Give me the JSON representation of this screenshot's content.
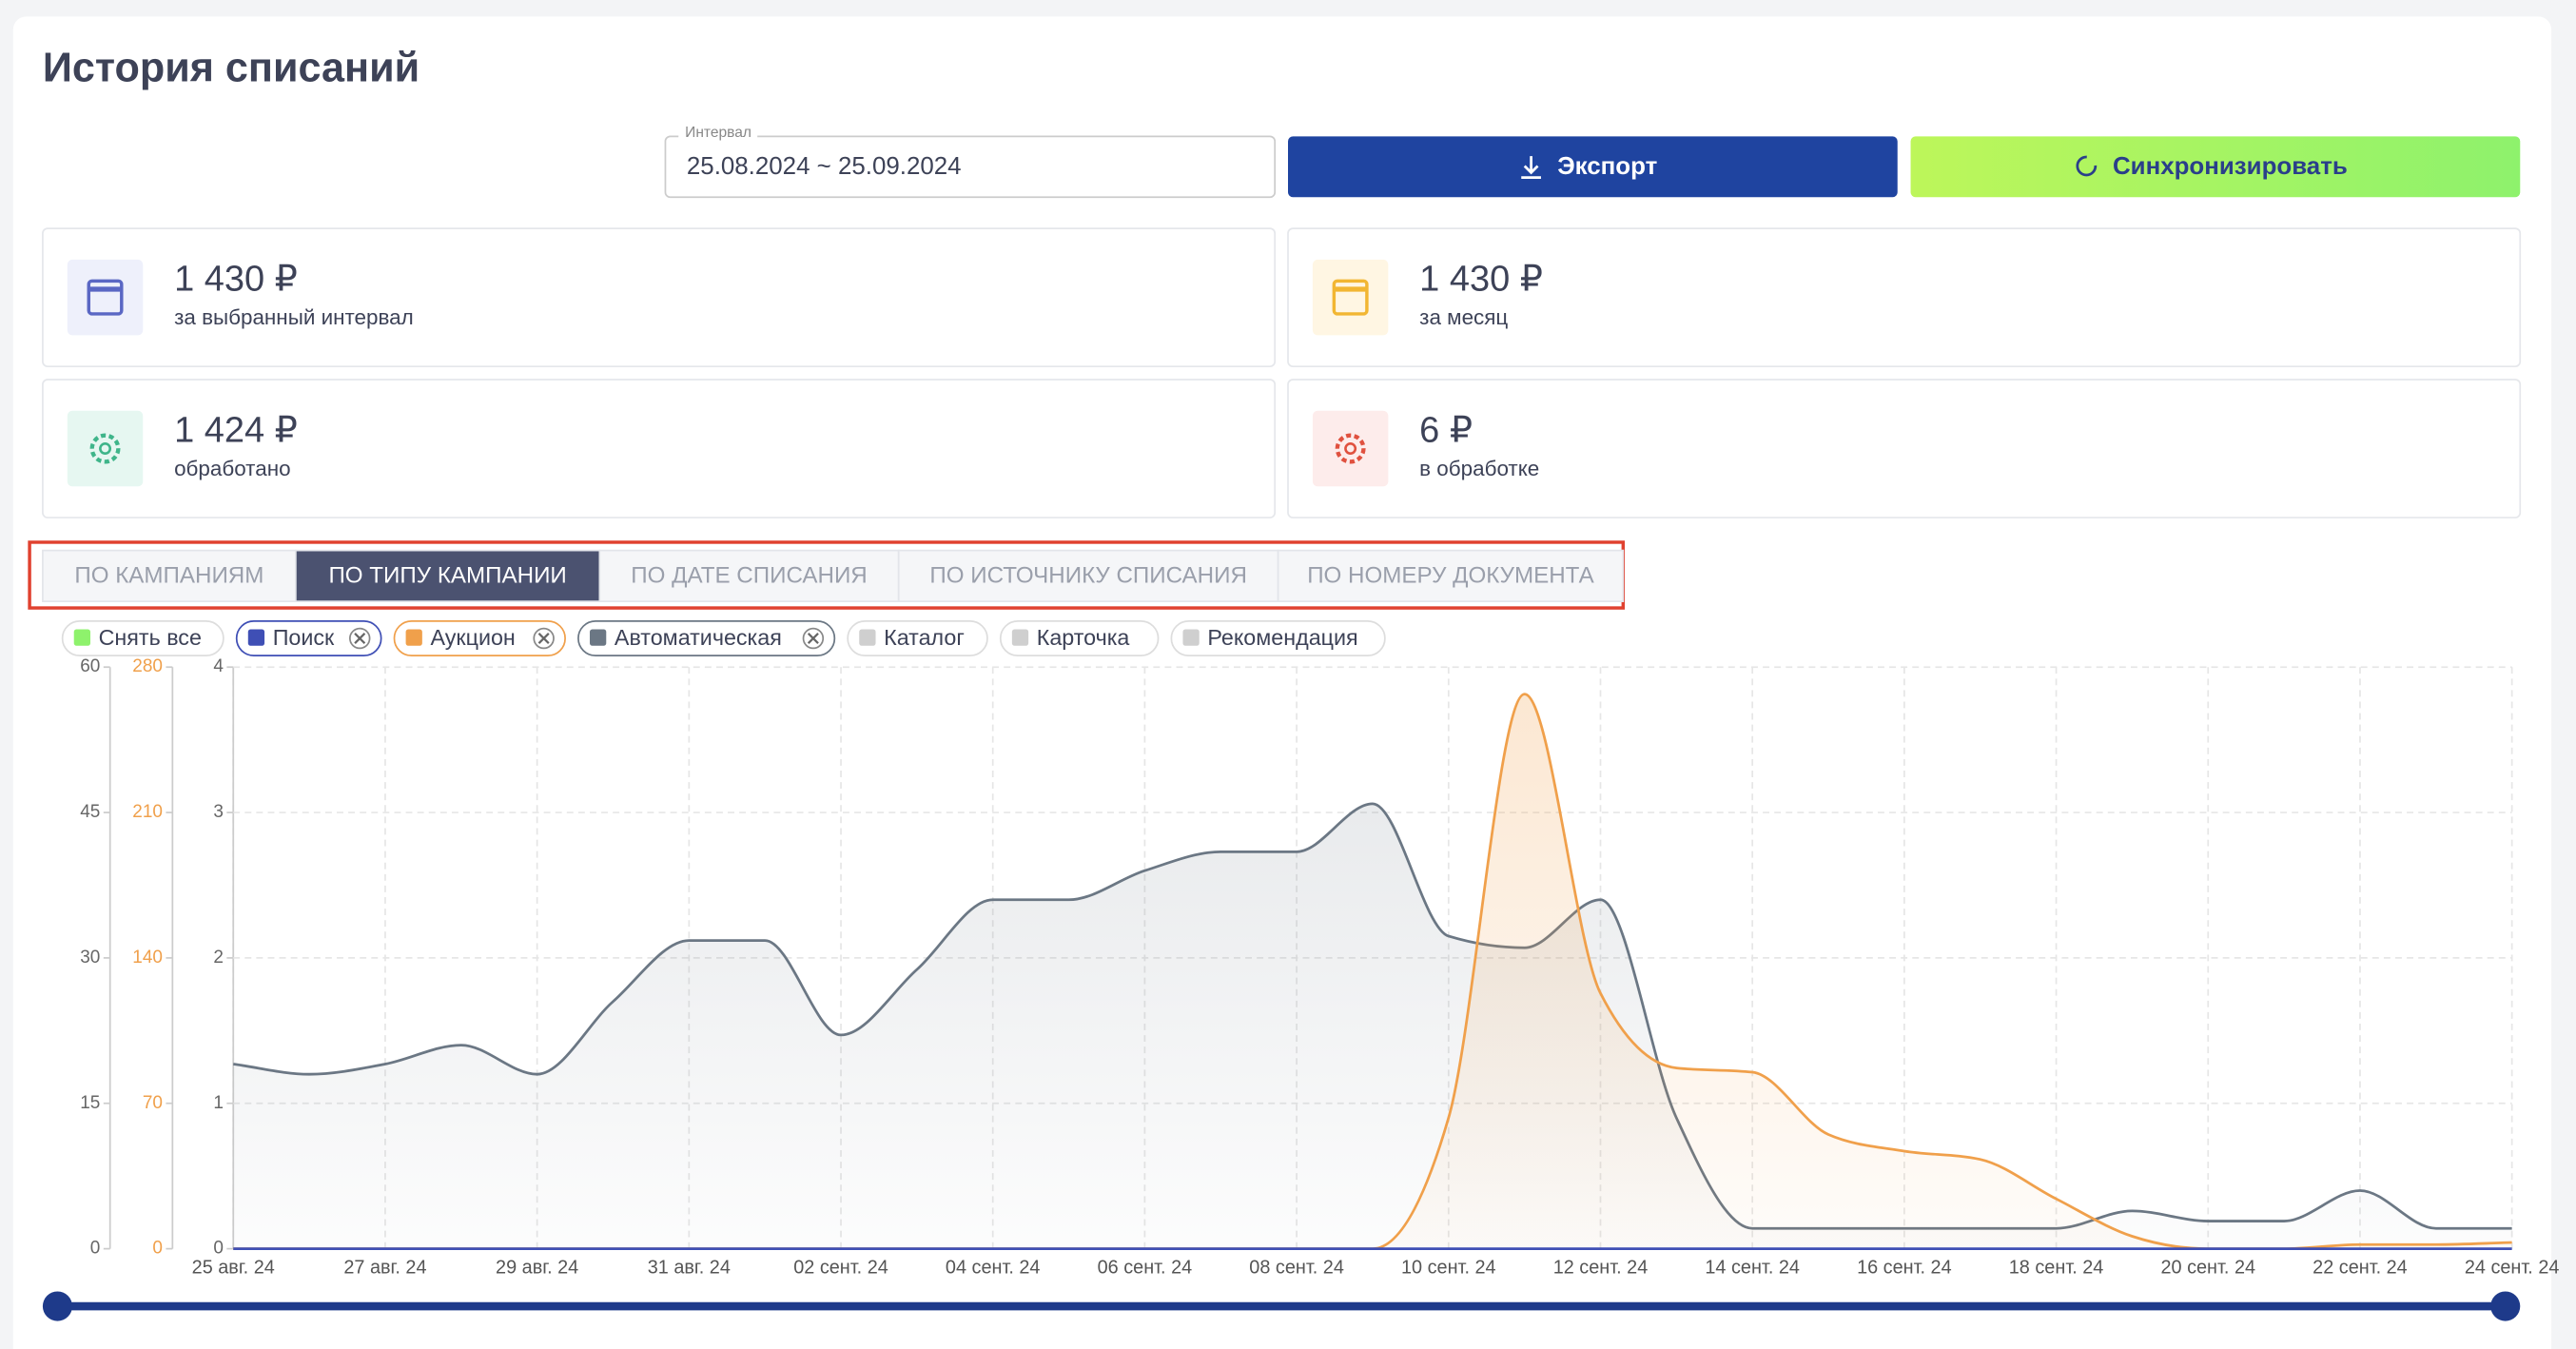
{
  "header": {
    "title": "История списаний"
  },
  "interval": {
    "label": "Интервал",
    "value": "25.08.2024 ~ 25.09.2024"
  },
  "buttons": {
    "export": "Экспорт",
    "sync": "Синхронизировать"
  },
  "stats": [
    {
      "value": "1 430 ₽",
      "label": "за выбранный интервал"
    },
    {
      "value": "1 430 ₽",
      "label": "за месяц"
    },
    {
      "value": "1 424 ₽",
      "label": "обработано"
    },
    {
      "value": "6 ₽",
      "label": "в обработке"
    }
  ],
  "tabs": {
    "items": [
      "ПО КАМПАНИЯМ",
      "ПО ТИПУ КАМПАНИИ",
      "ПО ДАТЕ СПИСАНИЯ",
      "ПО ИСТОЧНИКУ СПИСАНИЯ",
      "ПО НОМЕРУ ДОКУМЕНТА"
    ],
    "active": 1
  },
  "chart_data": {
    "type": "line",
    "clear_all": "Снять все",
    "inactive_series": [
      "Каталог",
      "Карточка",
      "Рекомендация"
    ],
    "grid": true,
    "x": [
      "25 авг. 24",
      null,
      "27 авг. 24",
      null,
      "29 авг. 24",
      null,
      "31 авг. 24",
      null,
      "02 сент. 24",
      null,
      "04 сент. 24",
      null,
      "06 сент. 24",
      null,
      "08 сент. 24",
      null,
      "10 сент. 24",
      null,
      "12 сент. 24",
      null,
      "14 сент. 24",
      null,
      "16 сент. 24",
      null,
      "18 сент. 24",
      null,
      "20 сент. 24",
      null,
      "22 сент. 24",
      null,
      "24 сент. 24"
    ],
    "ylim": [
      0,
      4
    ],
    "yticks": [
      0,
      1,
      2,
      3,
      4
    ],
    "y2lim": [
      0,
      280
    ],
    "y2ticks": [
      0,
      70,
      140,
      210,
      280
    ],
    "y3lim": [
      0,
      60
    ],
    "y3ticks": [
      0,
      15,
      30,
      45,
      60
    ],
    "series": [
      {
        "name": "Поиск",
        "color": "#3f4fb5",
        "axis": "y3",
        "values": [
          0,
          0,
          0,
          0,
          0,
          0,
          0,
          0,
          0,
          0,
          0,
          0,
          0,
          0,
          0,
          0,
          0,
          0,
          0,
          0,
          0,
          0,
          0,
          0,
          0,
          0,
          0,
          0,
          0,
          0,
          0
        ]
      },
      {
        "name": "Аукцион",
        "color": "#f0a04b",
        "axis": "y2",
        "values": [
          0,
          0,
          0,
          0,
          0,
          0,
          0,
          0,
          0,
          0,
          0,
          0,
          0,
          0,
          0,
          0,
          63,
          267,
          123,
          87,
          85,
          55,
          47,
          43,
          24,
          6,
          0,
          0,
          2,
          2,
          3
        ]
      },
      {
        "name": "Автоматическая",
        "color": "#6b7784",
        "axis": "y",
        "values": [
          1.27,
          1.2,
          1.27,
          1.4,
          1.2,
          1.7,
          2.12,
          2.12,
          1.47,
          1.92,
          2.4,
          2.4,
          2.6,
          2.73,
          2.73,
          3.06,
          2.15,
          2.07,
          2.4,
          0.9,
          0.14,
          0.14,
          0.14,
          0.14,
          0.14,
          0.26,
          0.19,
          0.19,
          0.4,
          0.14,
          0.14
        ]
      }
    ]
  }
}
